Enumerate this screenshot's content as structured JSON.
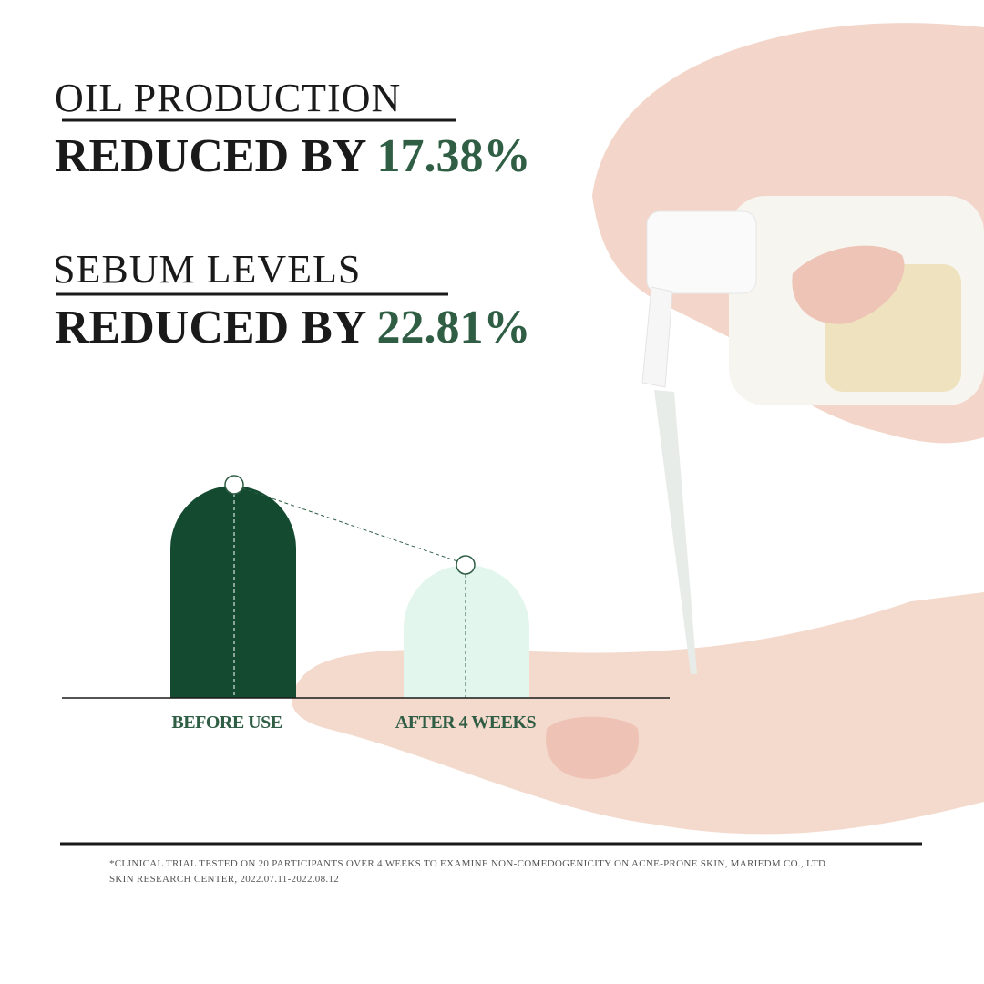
{
  "blocks": [
    {
      "heading": "OIL PRODUCTION",
      "statement": "REDUCED BY",
      "value": "17.38%"
    },
    {
      "heading": "SEBUM LEVELS",
      "statement": "REDUCED BY",
      "value": "22.81%"
    }
  ],
  "graphic": {
    "labels": [
      "BEFORE USE",
      "AFTER 4 WEEKS"
    ]
  },
  "footnote": [
    "*CLINICAL TRIAL TESTED ON 20 PARTICIPANTS OVER 4 WEEKS TO EXAMINE NON-COMEDOGENICITY ON ACNE-PRONE SKIN, MARIEDM CO., LTD",
    "SKIN RESEARCH CENTER, 2022.07.11-2022.08.12"
  ]
}
